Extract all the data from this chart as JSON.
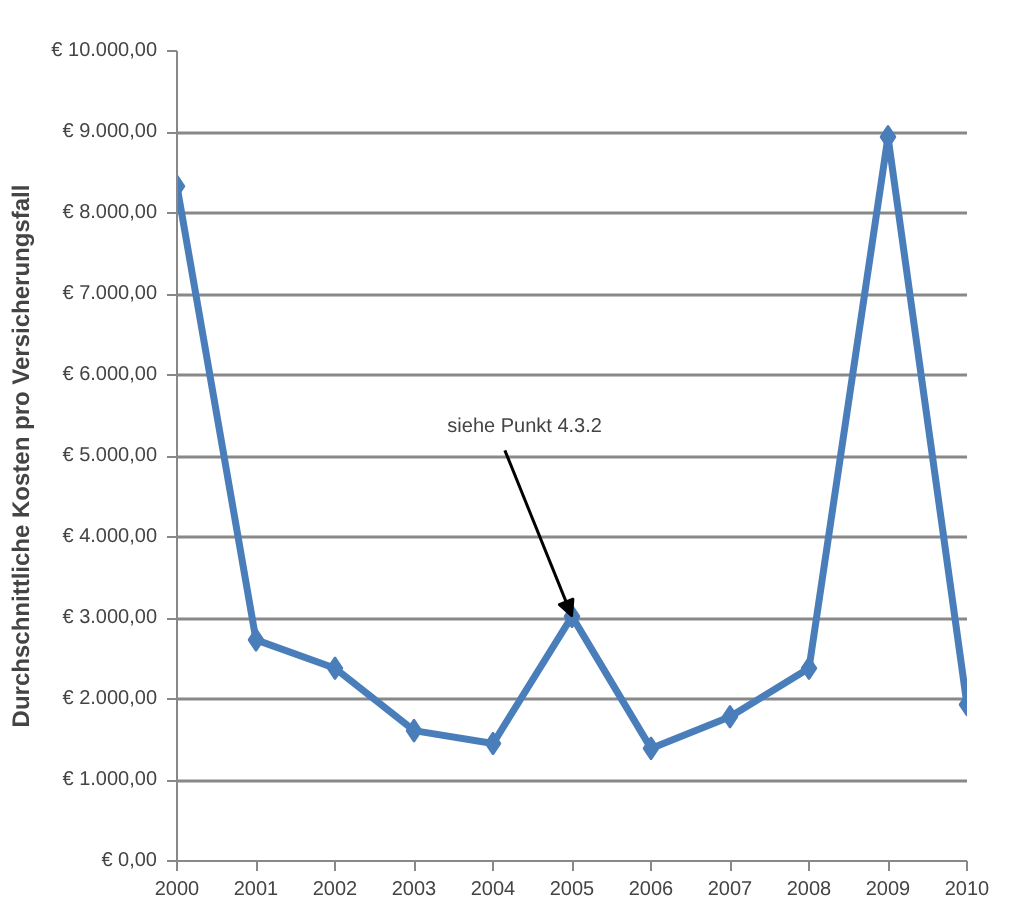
{
  "chart_data": {
    "type": "line",
    "ylabel": "Durchschnittliche Kosten pro Versicherungsfall",
    "categories": [
      "2000",
      "2001",
      "2002",
      "2003",
      "2004",
      "2005",
      "2006",
      "2007",
      "2008",
      "2009",
      "2010"
    ],
    "series": [
      {
        "color": "#4a7ebb",
        "values": [
          8330,
          2730,
          2380,
          1610,
          1450,
          3020,
          1390,
          1780,
          2380,
          8940,
          1930
        ]
      }
    ],
    "ylim": [
      0,
      10000
    ],
    "yticks": [
      {
        "value": 0,
        "label": "€ 0,00"
      },
      {
        "value": 1000,
        "label": "€ 1.000,00"
      },
      {
        "value": 2000,
        "label": "€ 2.000,00"
      },
      {
        "value": 3000,
        "label": "€ 3.000,00"
      },
      {
        "value": 4000,
        "label": "€ 4.000,00"
      },
      {
        "value": 5000,
        "label": "€ 5.000,00"
      },
      {
        "value": 6000,
        "label": "€ 6.000,00"
      },
      {
        "value": 7000,
        "label": "€ 7.000,00"
      },
      {
        "value": 8000,
        "label": "€ 8.000,00"
      },
      {
        "value": 9000,
        "label": "€ 9.000,00"
      },
      {
        "value": 10000,
        "label": "€ 10.000,00"
      }
    ],
    "annotations": [
      {
        "text": "siehe Punkt 4.3.2",
        "x": "2005",
        "y": 3020
      }
    ],
    "grid": "y",
    "marker": "diamond",
    "line_style": "solid"
  }
}
